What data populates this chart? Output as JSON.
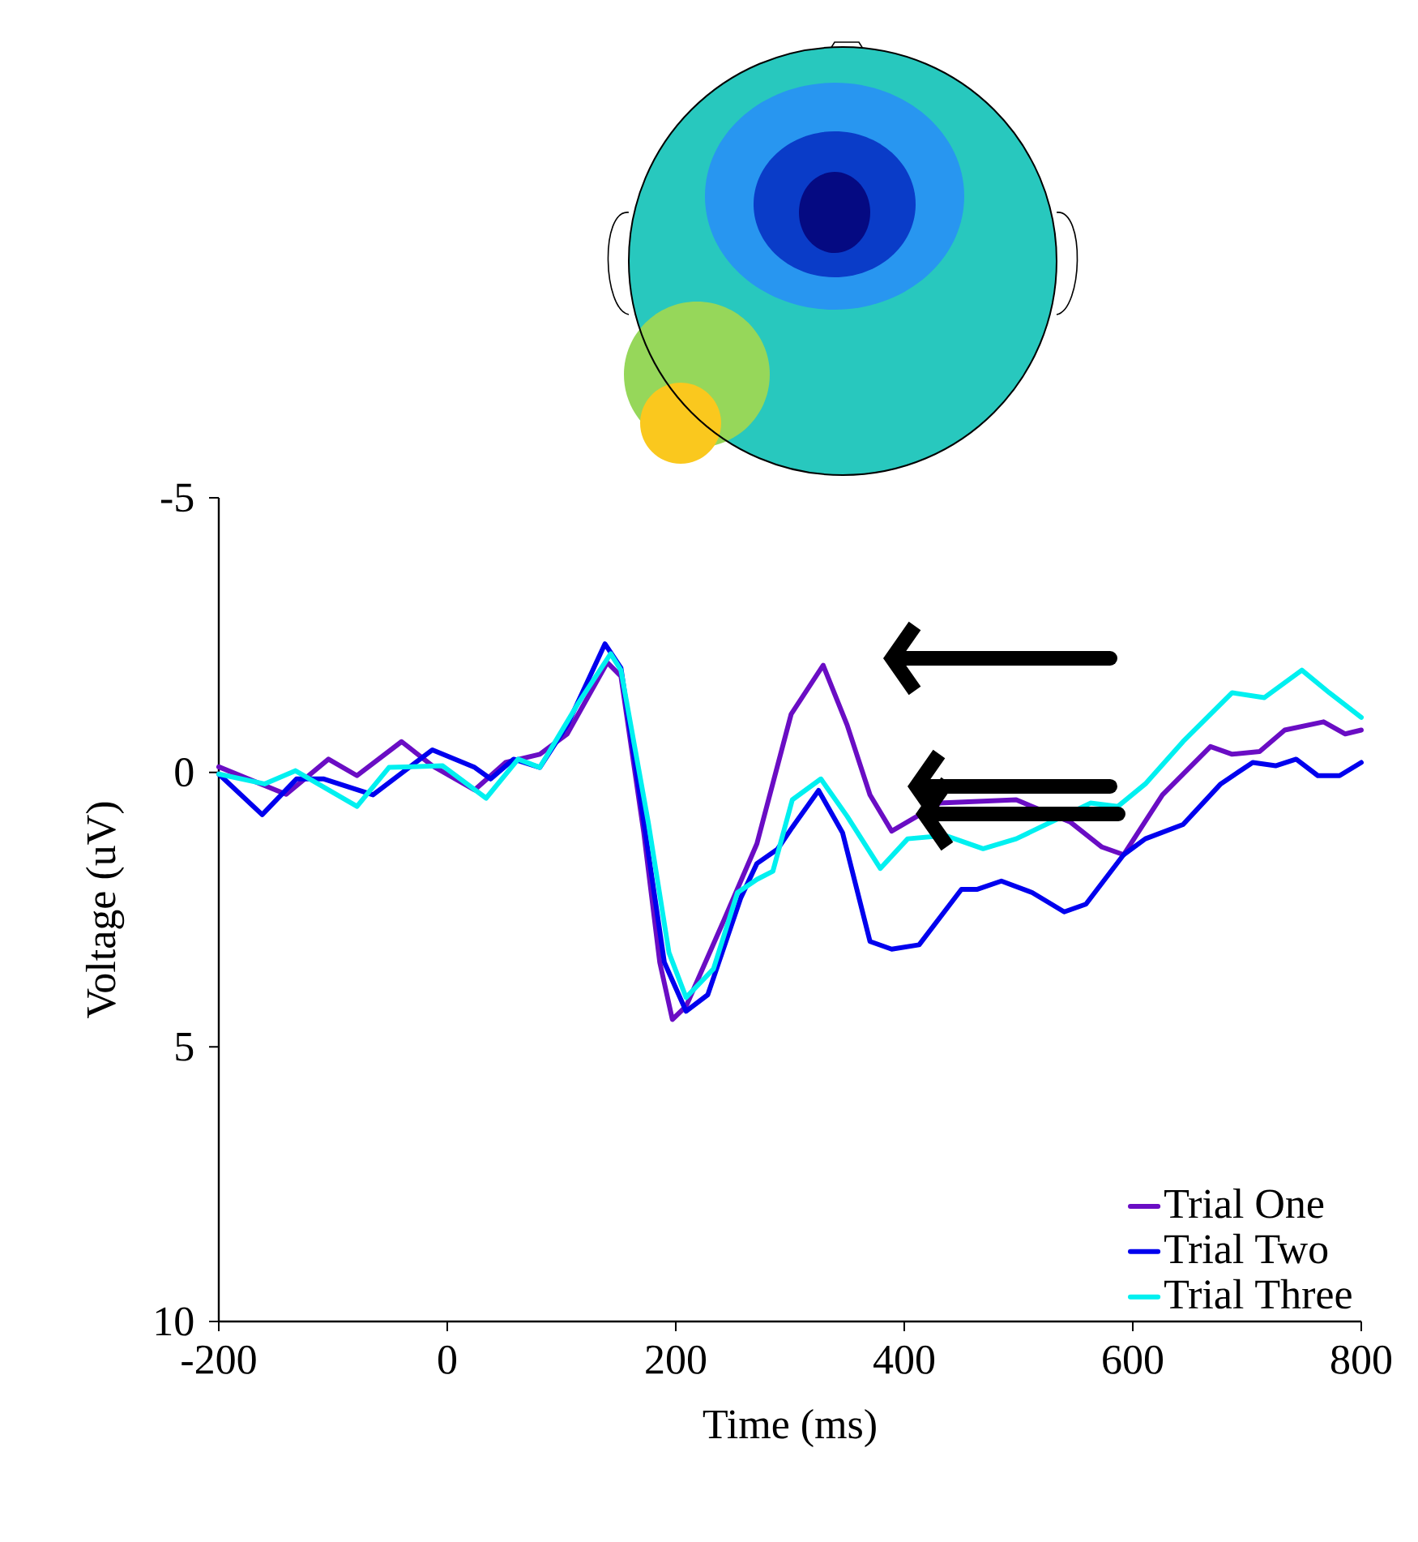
{
  "chart_data": {
    "type": "line",
    "xlabel": "Time (ms)",
    "ylabel": "Voltage (uV)",
    "xlim": [
      -200,
      800
    ],
    "xticks": [
      -200,
      0,
      200,
      400,
      600,
      800
    ],
    "ylim": [
      10,
      -5
    ],
    "yticks": [
      -5,
      0,
      5,
      10
    ],
    "legend": "bottom right",
    "grid": false,
    "marker": "none",
    "line_style": "solid",
    "series": [
      {
        "name": "Trial One",
        "color": "#6a0dc4",
        "x": [
          -200,
          -141,
          -104,
          -79,
          -40,
          -13,
          24,
          51,
          81,
          105,
          140,
          152,
          172,
          186,
          197,
          209,
          242,
          271,
          301,
          329,
          350,
          370,
          389,
          431,
          498,
          521,
          545,
          573,
          592,
          626,
          668,
          687,
          711,
          733,
          767,
          786,
          800
        ],
        "values": [
          -0.1,
          0.4,
          -0.24,
          0.06,
          -0.56,
          -0.12,
          0.32,
          -0.18,
          -0.33,
          -0.7,
          -2.0,
          -1.75,
          1.1,
          3.46,
          4.5,
          4.26,
          2.7,
          1.3,
          -1.06,
          -1.95,
          -0.86,
          0.41,
          1.07,
          0.56,
          0.5,
          0.7,
          0.9,
          1.36,
          1.5,
          0.41,
          -0.47,
          -0.33,
          -0.38,
          -0.77,
          -0.92,
          -0.7,
          -0.77
        ]
      },
      {
        "name": "Trial Two",
        "color": "#0000ee",
        "x": [
          -200,
          -162,
          -132,
          -108,
          -65,
          -13,
          24,
          38,
          58,
          81,
          105,
          138,
          152,
          172,
          190,
          209,
          228,
          257,
          271,
          289,
          302,
          325,
          346,
          370,
          389,
          413,
          450,
          464,
          485,
          512,
          540,
          559,
          592,
          611,
          644,
          677,
          705,
          725,
          743,
          762,
          781,
          800
        ],
        "values": [
          0.03,
          0.77,
          0.12,
          0.12,
          0.41,
          -0.41,
          -0.09,
          0.12,
          -0.24,
          -0.09,
          -0.86,
          -2.34,
          -1.9,
          0.9,
          3.46,
          4.35,
          4.05,
          2.28,
          1.66,
          1.4,
          1.0,
          0.33,
          1.1,
          3.08,
          3.22,
          3.14,
          2.13,
          2.13,
          1.98,
          2.19,
          2.54,
          2.4,
          1.5,
          1.21,
          0.95,
          0.21,
          -0.18,
          -0.12,
          -0.24,
          0.06,
          0.06,
          -0.18
        ]
      },
      {
        "name": "Trial Three",
        "color": "#00f0f0",
        "x": [
          -200,
          -160,
          -133,
          -79,
          -51,
          -4,
          34,
          62,
          81,
          115,
          143,
          152,
          176,
          194,
          209,
          233,
          254,
          271,
          285,
          302,
          327,
          350,
          379,
          403,
          436,
          469,
          498,
          526,
          563,
          587,
          611,
          644,
          687,
          715,
          748,
          772,
          800
        ],
        "values": [
          0.03,
          0.21,
          -0.03,
          0.62,
          -0.09,
          -0.12,
          0.47,
          -0.24,
          -0.09,
          -1.27,
          -2.16,
          -1.86,
          0.92,
          3.28,
          4.1,
          3.58,
          2.19,
          1.95,
          1.8,
          0.5,
          0.12,
          0.8,
          1.75,
          1.21,
          1.15,
          1.39,
          1.21,
          null,
          0.56,
          0.62,
          0.21,
          -0.56,
          -1.45,
          -1.36,
          -1.86,
          -1.45,
          -1.0
        ]
      }
    ]
  }
}
